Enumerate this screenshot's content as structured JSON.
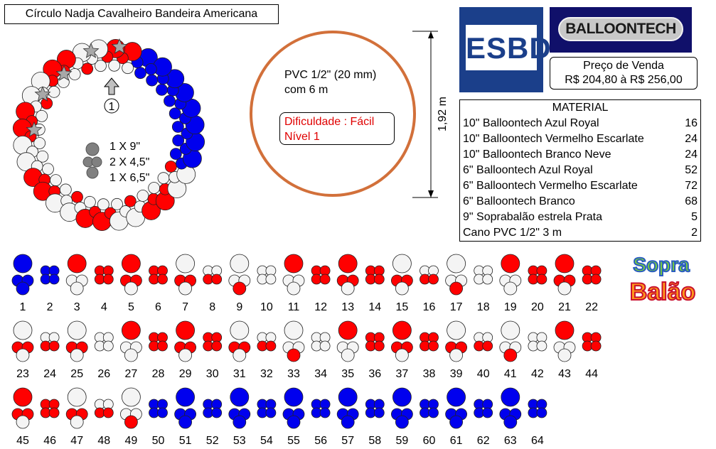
{
  "title": "Círculo Nadja Cavalheiro Bandeira Americana",
  "callout_number": "1",
  "legend": {
    "line1": "1 X 9\"",
    "line2": "2 X 4,5\"",
    "line3": "1 X 6,5\""
  },
  "pvc_text": {
    "line1": "PVC 1/2\" (20 mm)",
    "line2": "com 6 m"
  },
  "difficulty": {
    "line1": "Dificuldade : Fácil",
    "line2": "Nível 1"
  },
  "dimension_label": "1,92 m",
  "esbd_logo": "ESBD",
  "balloontech_logo": "BALLOONTECH",
  "price": {
    "label": "Preço de Venda",
    "value": "R$ 204,80 à R$ 256,00"
  },
  "material": {
    "title": "MATERIAL",
    "items": [
      {
        "name": "10\" Balloontech Azul Royal",
        "qty": "16"
      },
      {
        "name": "10\" Balloontech Vermelho Escarlate",
        "qty": "24"
      },
      {
        "name": "10\" Balloontech Branco Neve",
        "qty": "24"
      },
      {
        "name": "6\" Balloontech Azul Royal",
        "qty": "52"
      },
      {
        "name": "6\" Balloontech Vermelho Escarlate",
        "qty": "72"
      },
      {
        "name": "6\" Balloontech Branco",
        "qty": "68"
      },
      {
        "name": "9\" Soprabalão estrela Prata",
        "qty": "5"
      },
      {
        "name": "Cano PVC 1/2\" 3 m",
        "qty": "2"
      }
    ]
  },
  "sopra_logo": {
    "line1": "Sopra",
    "line2": "Balão"
  },
  "colors": {
    "blue": "#0000ee",
    "red": "#ff0000",
    "white": "#f4f4f4",
    "grey": "#808080",
    "orange": "#d2703a",
    "navy": "#1b3f8a"
  },
  "patterns": [
    {
      "n": "1",
      "type": "cluster",
      "top": "blue",
      "left": "blue",
      "right": "blue",
      "bottom": "blue"
    },
    {
      "n": "2",
      "type": "quad",
      "c": [
        "blue",
        "blue",
        "blue",
        "blue"
      ]
    },
    {
      "n": "3",
      "type": "cluster",
      "top": "red",
      "left": "white",
      "right": "white",
      "bottom": "white"
    },
    {
      "n": "4",
      "type": "quad",
      "c": [
        "red",
        "red",
        "red",
        "red"
      ]
    },
    {
      "n": "5",
      "type": "cluster",
      "top": "red",
      "left": "red",
      "right": "red",
      "bottom": "white"
    },
    {
      "n": "6",
      "type": "quad",
      "c": [
        "red",
        "red",
        "red",
        "red"
      ]
    },
    {
      "n": "7",
      "type": "cluster",
      "top": "white",
      "left": "red",
      "right": "red",
      "bottom": "white"
    },
    {
      "n": "8",
      "type": "quad",
      "c": [
        "white",
        "white",
        "red",
        "red"
      ]
    },
    {
      "n": "9",
      "type": "cluster",
      "top": "white",
      "left": "white",
      "right": "white",
      "bottom": "red"
    },
    {
      "n": "10",
      "type": "quad",
      "c": [
        "white",
        "white",
        "white",
        "white"
      ]
    },
    {
      "n": "11",
      "type": "cluster",
      "top": "red",
      "left": "white",
      "right": "white",
      "bottom": "white"
    },
    {
      "n": "12",
      "type": "quad",
      "c": [
        "red",
        "red",
        "red",
        "red"
      ]
    },
    {
      "n": "13",
      "type": "cluster",
      "top": "red",
      "left": "red",
      "right": "red",
      "bottom": "white"
    },
    {
      "n": "14",
      "type": "quad",
      "c": [
        "red",
        "red",
        "red",
        "red"
      ]
    },
    {
      "n": "15",
      "type": "cluster",
      "top": "white",
      "left": "red",
      "right": "red",
      "bottom": "white"
    },
    {
      "n": "16",
      "type": "quad",
      "c": [
        "white",
        "white",
        "red",
        "red"
      ]
    },
    {
      "n": "17",
      "type": "cluster",
      "top": "white",
      "left": "white",
      "right": "white",
      "bottom": "red"
    },
    {
      "n": "18",
      "type": "quad",
      "c": [
        "white",
        "white",
        "white",
        "white"
      ]
    },
    {
      "n": "19",
      "type": "cluster",
      "top": "red",
      "left": "white",
      "right": "white",
      "bottom": "white"
    },
    {
      "n": "20",
      "type": "quad",
      "c": [
        "red",
        "red",
        "red",
        "red"
      ]
    },
    {
      "n": "21",
      "type": "cluster",
      "top": "red",
      "left": "red",
      "right": "red",
      "bottom": "white"
    },
    {
      "n": "22",
      "type": "quad",
      "c": [
        "red",
        "red",
        "red",
        "red"
      ]
    },
    {
      "n": "23",
      "type": "cluster",
      "top": "white",
      "left": "red",
      "right": "red",
      "bottom": "white"
    },
    {
      "n": "24",
      "type": "quad",
      "c": [
        "white",
        "white",
        "red",
        "red"
      ]
    },
    {
      "n": "25",
      "type": "cluster",
      "top": "white",
      "left": "red",
      "right": "red",
      "bottom": "white"
    },
    {
      "n": "26",
      "type": "quad",
      "c": [
        "white",
        "white",
        "white",
        "white"
      ]
    },
    {
      "n": "27",
      "type": "cluster",
      "top": "red",
      "left": "white",
      "right": "white",
      "bottom": "white"
    },
    {
      "n": "28",
      "type": "quad",
      "c": [
        "red",
        "red",
        "red",
        "red"
      ]
    },
    {
      "n": "29",
      "type": "cluster",
      "top": "red",
      "left": "red",
      "right": "red",
      "bottom": "white"
    },
    {
      "n": "30",
      "type": "quad",
      "c": [
        "red",
        "red",
        "red",
        "red"
      ]
    },
    {
      "n": "31",
      "type": "cluster",
      "top": "white",
      "left": "red",
      "right": "red",
      "bottom": "white"
    },
    {
      "n": "32",
      "type": "quad",
      "c": [
        "white",
        "white",
        "red",
        "red"
      ]
    },
    {
      "n": "33",
      "type": "cluster",
      "top": "white",
      "left": "white",
      "right": "white",
      "bottom": "red"
    },
    {
      "n": "34",
      "type": "quad",
      "c": [
        "white",
        "white",
        "white",
        "white"
      ]
    },
    {
      "n": "35",
      "type": "cluster",
      "top": "red",
      "left": "white",
      "right": "white",
      "bottom": "white"
    },
    {
      "n": "36",
      "type": "quad",
      "c": [
        "red",
        "red",
        "red",
        "red"
      ]
    },
    {
      "n": "37",
      "type": "cluster",
      "top": "red",
      "left": "red",
      "right": "red",
      "bottom": "white"
    },
    {
      "n": "38",
      "type": "quad",
      "c": [
        "red",
        "red",
        "red",
        "red"
      ]
    },
    {
      "n": "39",
      "type": "cluster",
      "top": "white",
      "left": "red",
      "right": "red",
      "bottom": "white"
    },
    {
      "n": "40",
      "type": "quad",
      "c": [
        "white",
        "white",
        "red",
        "red"
      ]
    },
    {
      "n": "41",
      "type": "cluster",
      "top": "white",
      "left": "white",
      "right": "white",
      "bottom": "red"
    },
    {
      "n": "42",
      "type": "quad",
      "c": [
        "white",
        "white",
        "white",
        "white"
      ]
    },
    {
      "n": "43",
      "type": "cluster",
      "top": "red",
      "left": "white",
      "right": "white",
      "bottom": "white"
    },
    {
      "n": "44",
      "type": "quad",
      "c": [
        "red",
        "red",
        "red",
        "red"
      ]
    },
    {
      "n": "45",
      "type": "cluster",
      "top": "red",
      "left": "red",
      "right": "red",
      "bottom": "white"
    },
    {
      "n": "46",
      "type": "quad",
      "c": [
        "red",
        "red",
        "red",
        "red"
      ]
    },
    {
      "n": "47",
      "type": "cluster",
      "top": "white",
      "left": "red",
      "right": "red",
      "bottom": "white"
    },
    {
      "n": "48",
      "type": "quad",
      "c": [
        "white",
        "white",
        "red",
        "red"
      ]
    },
    {
      "n": "49",
      "type": "cluster",
      "top": "white",
      "left": "white",
      "right": "white",
      "bottom": "red"
    },
    {
      "n": "50",
      "type": "quad",
      "c": [
        "blue",
        "blue",
        "blue",
        "blue"
      ]
    },
    {
      "n": "51",
      "type": "cluster",
      "top": "blue",
      "left": "blue",
      "right": "blue",
      "bottom": "blue"
    },
    {
      "n": "52",
      "type": "quad",
      "c": [
        "blue",
        "blue",
        "blue",
        "blue"
      ]
    },
    {
      "n": "53",
      "type": "cluster",
      "top": "blue",
      "left": "blue",
      "right": "blue",
      "bottom": "blue"
    },
    {
      "n": "54",
      "type": "quad",
      "c": [
        "blue",
        "blue",
        "blue",
        "blue"
      ]
    },
    {
      "n": "55",
      "type": "cluster",
      "top": "blue",
      "left": "blue",
      "right": "blue",
      "bottom": "blue"
    },
    {
      "n": "56",
      "type": "quad",
      "c": [
        "blue",
        "blue",
        "blue",
        "blue"
      ]
    },
    {
      "n": "57",
      "type": "cluster",
      "top": "blue",
      "left": "blue",
      "right": "blue",
      "bottom": "blue"
    },
    {
      "n": "58",
      "type": "quad",
      "c": [
        "blue",
        "blue",
        "blue",
        "blue"
      ]
    },
    {
      "n": "59",
      "type": "cluster",
      "top": "blue",
      "left": "blue",
      "right": "blue",
      "bottom": "blue"
    },
    {
      "n": "60",
      "type": "quad",
      "c": [
        "blue",
        "blue",
        "blue",
        "blue"
      ]
    },
    {
      "n": "61",
      "type": "cluster",
      "top": "blue",
      "left": "blue",
      "right": "blue",
      "bottom": "blue"
    },
    {
      "n": "62",
      "type": "quad",
      "c": [
        "blue",
        "blue",
        "blue",
        "blue"
      ]
    },
    {
      "n": "63",
      "type": "cluster",
      "top": "blue",
      "left": "blue",
      "right": "blue",
      "bottom": "blue"
    },
    {
      "n": "64",
      "type": "quad",
      "c": [
        "blue",
        "blue",
        "blue",
        "blue"
      ]
    }
  ]
}
